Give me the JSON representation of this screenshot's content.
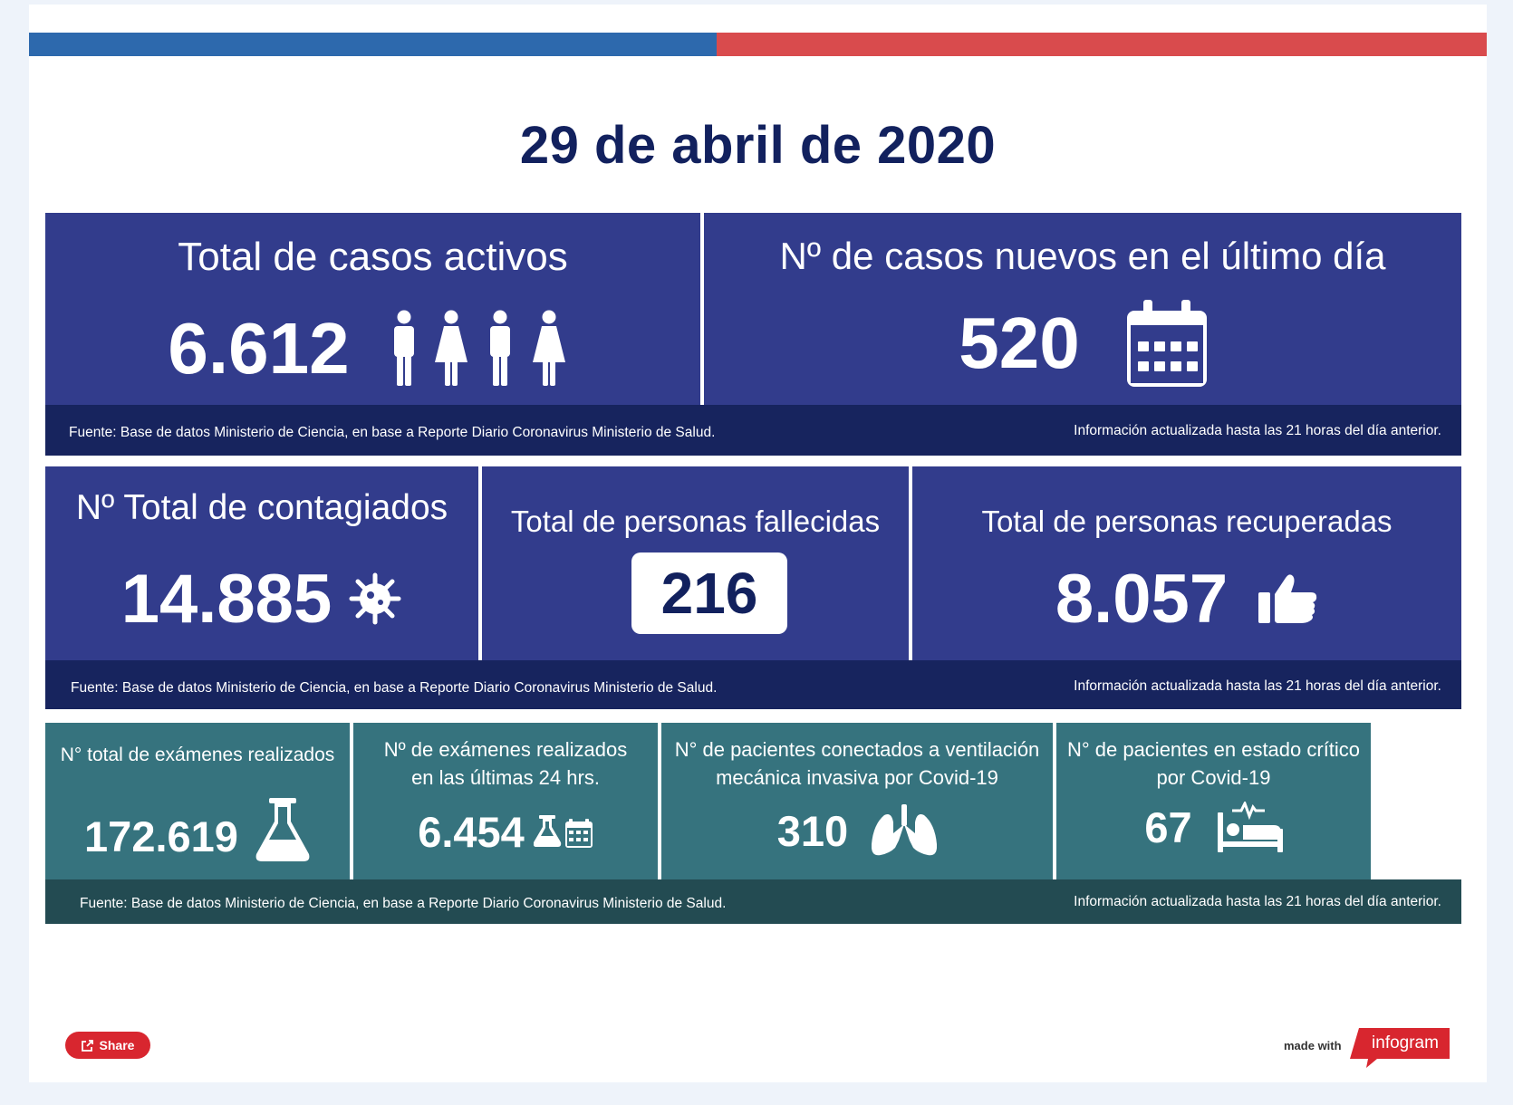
{
  "colors": {
    "flag_blue": "#2d69ad",
    "flag_red": "#d94b4d",
    "navy_card": "#323c8c",
    "navy_footer": "#17245e",
    "teal_card": "#36737e",
    "teal_footer": "#234b52",
    "title": "#12215e"
  },
  "title": "29 de abril de 2020",
  "row1": {
    "cards": [
      {
        "title": "Total de casos activos",
        "value": "6.612",
        "icon": "people-icon"
      },
      {
        "title": "Nº de casos nuevos en el último día",
        "value": "520",
        "icon": "calendar-icon"
      }
    ],
    "source": "Fuente: Base de datos Ministerio de Ciencia, en base a Reporte Diario Coronavirus Ministerio de Salud.",
    "updated": "Información actualizada hasta las 21 horas  del día anterior."
  },
  "row2": {
    "cards": [
      {
        "title": "Nº Total de contagiados",
        "value": "14.885",
        "icon": "virus-icon"
      },
      {
        "title": "Total de personas fallecidas",
        "value": "216"
      },
      {
        "title": "Total de personas recuperadas",
        "value": "8.057",
        "icon": "thumbs-up-icon"
      }
    ],
    "source": "Fuente: Base de datos Ministerio de Ciencia, en base a Reporte Diario Coronavirus Ministerio de Salud.",
    "updated": "Información actualizada hasta las 21 horas  del día anterior."
  },
  "row3": {
    "cards": [
      {
        "title": "N° total de exámenes realizados",
        "value": "172.619",
        "icon": "flask-icon"
      },
      {
        "title_line1": "Nº de exámenes realizados",
        "title_line2": "en las últimas 24 hrs.",
        "value": "6.454",
        "icon": "flask-calendar-icon"
      },
      {
        "title_line1": "N° de pacientes conectados a ventilación",
        "title_line2": "mecánica invasiva por Covid-19",
        "value": "310",
        "icon": "lungs-icon"
      },
      {
        "title_line1": "N° de pacientes en estado crítico",
        "title_line2": "por Covid-19",
        "value": "67",
        "icon": "hospital-bed-icon"
      }
    ],
    "source": "Fuente: Base de datos Ministerio de Ciencia, en base a Reporte Diario Coronavirus Ministerio de Salud.",
    "updated": "Información actualizada hasta las 21 horas  del día anterior."
  },
  "share_label": "Share",
  "made_with": "made with",
  "brand": "infogram"
}
